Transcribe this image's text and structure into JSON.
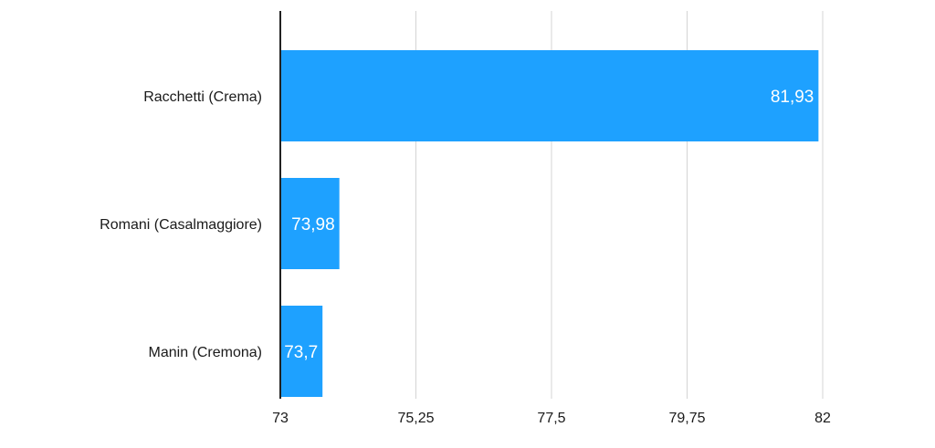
{
  "chart_data": {
    "type": "bar",
    "orientation": "horizontal",
    "categories": [
      "Racchetti (Crema)",
      "Romani (Casalmaggiore)",
      "Manin (Cremona)"
    ],
    "values": [
      81.93,
      73.98,
      73.7
    ],
    "value_labels": [
      "81,93",
      "73,98",
      "73,7"
    ],
    "xlim": [
      73,
      82
    ],
    "xticks": [
      73,
      75.25,
      77.5,
      79.75,
      82
    ],
    "xtick_labels": [
      "73",
      "75,25",
      "77,5",
      "79,75",
      "82"
    ],
    "grid": "vertical",
    "bar_color": "#1ea1ff",
    "title": "",
    "xlabel": "",
    "ylabel": ""
  }
}
